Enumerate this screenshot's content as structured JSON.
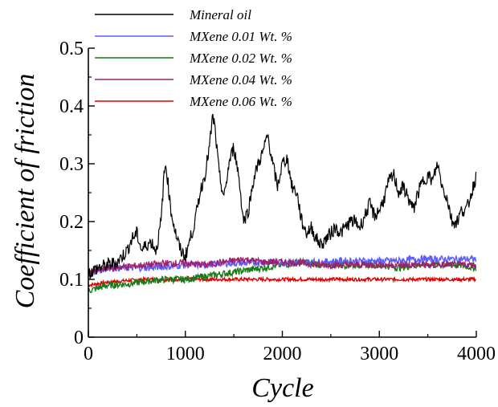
{
  "chart_data": {
    "type": "line",
    "title": "",
    "xlabel": "Cycle",
    "ylabel": "Coefficient of friction",
    "xlim": [
      0,
      4000
    ],
    "ylim": [
      0,
      0.5
    ],
    "xticks": [
      0,
      1000,
      2000,
      3000,
      4000
    ],
    "yticks": [
      0,
      0.1,
      0.2,
      0.3,
      0.4,
      0.5
    ],
    "xtick_labels": [
      "0",
      "1000",
      "2000",
      "3000",
      "4000"
    ],
    "ytick_labels": [
      "0",
      "0.1",
      "0.2",
      "0.3",
      "0.4",
      "0.5"
    ],
    "grid": false,
    "legend_position": "top-left",
    "series": [
      {
        "name": "Mineral oil",
        "color": "#000000",
        "points": [
          [
            0,
            0.11
          ],
          [
            100,
            0.12
          ],
          [
            200,
            0.125
          ],
          [
            300,
            0.13
          ],
          [
            400,
            0.15
          ],
          [
            450,
            0.17
          ],
          [
            500,
            0.18
          ],
          [
            550,
            0.15
          ],
          [
            600,
            0.16
          ],
          [
            650,
            0.165
          ],
          [
            700,
            0.15
          ],
          [
            750,
            0.2
          ],
          [
            780,
            0.28
          ],
          [
            800,
            0.3
          ],
          [
            850,
            0.22
          ],
          [
            900,
            0.18
          ],
          [
            950,
            0.15
          ],
          [
            1000,
            0.14
          ],
          [
            1050,
            0.17
          ],
          [
            1100,
            0.2
          ],
          [
            1150,
            0.25
          ],
          [
            1200,
            0.28
          ],
          [
            1250,
            0.33
          ],
          [
            1280,
            0.38
          ],
          [
            1300,
            0.37
          ],
          [
            1350,
            0.28
          ],
          [
            1400,
            0.24
          ],
          [
            1450,
            0.3
          ],
          [
            1500,
            0.33
          ],
          [
            1550,
            0.28
          ],
          [
            1600,
            0.2
          ],
          [
            1650,
            0.22
          ],
          [
            1700,
            0.27
          ],
          [
            1750,
            0.3
          ],
          [
            1800,
            0.32
          ],
          [
            1850,
            0.35
          ],
          [
            1900,
            0.3
          ],
          [
            1950,
            0.26
          ],
          [
            2000,
            0.3
          ],
          [
            2050,
            0.31
          ],
          [
            2100,
            0.26
          ],
          [
            2150,
            0.25
          ],
          [
            2200,
            0.2
          ],
          [
            2250,
            0.18
          ],
          [
            2300,
            0.19
          ],
          [
            2350,
            0.17
          ],
          [
            2400,
            0.16
          ],
          [
            2450,
            0.17
          ],
          [
            2500,
            0.18
          ],
          [
            2550,
            0.19
          ],
          [
            2600,
            0.18
          ],
          [
            2650,
            0.19
          ],
          [
            2700,
            0.2
          ],
          [
            2750,
            0.2
          ],
          [
            2800,
            0.19
          ],
          [
            2850,
            0.21
          ],
          [
            2900,
            0.23
          ],
          [
            2950,
            0.21
          ],
          [
            3000,
            0.22
          ],
          [
            3050,
            0.24
          ],
          [
            3100,
            0.27
          ],
          [
            3150,
            0.28
          ],
          [
            3200,
            0.25
          ],
          [
            3250,
            0.26
          ],
          [
            3300,
            0.24
          ],
          [
            3350,
            0.22
          ],
          [
            3400,
            0.25
          ],
          [
            3450,
            0.27
          ],
          [
            3500,
            0.28
          ],
          [
            3550,
            0.27
          ],
          [
            3600,
            0.3
          ],
          [
            3650,
            0.26
          ],
          [
            3700,
            0.24
          ],
          [
            3750,
            0.2
          ],
          [
            3800,
            0.2
          ],
          [
            3850,
            0.22
          ],
          [
            3900,
            0.22
          ],
          [
            3950,
            0.25
          ],
          [
            4000,
            0.28
          ]
        ]
      },
      {
        "name": "MXene 0.01 Wt. %",
        "color": "#5b5bff",
        "points": [
          [
            0,
            0.11
          ],
          [
            200,
            0.12
          ],
          [
            400,
            0.12
          ],
          [
            600,
            0.12
          ],
          [
            800,
            0.122
          ],
          [
            1000,
            0.125
          ],
          [
            1200,
            0.125
          ],
          [
            1400,
            0.128
          ],
          [
            1600,
            0.128
          ],
          [
            1800,
            0.13
          ],
          [
            2000,
            0.13
          ],
          [
            2200,
            0.13
          ],
          [
            2400,
            0.13
          ],
          [
            2600,
            0.132
          ],
          [
            2800,
            0.132
          ],
          [
            3000,
            0.132
          ],
          [
            3200,
            0.132
          ],
          [
            3400,
            0.135
          ],
          [
            3600,
            0.135
          ],
          [
            3800,
            0.135
          ],
          [
            4000,
            0.135
          ]
        ]
      },
      {
        "name": "MXene 0.02 Wt. %",
        "color": "#1a7a1a",
        "points": [
          [
            0,
            0.08
          ],
          [
            200,
            0.09
          ],
          [
            400,
            0.092
          ],
          [
            600,
            0.097
          ],
          [
            800,
            0.1
          ],
          [
            1000,
            0.1
          ],
          [
            1200,
            0.105
          ],
          [
            1400,
            0.11
          ],
          [
            1600,
            0.115
          ],
          [
            1800,
            0.12
          ],
          [
            2000,
            0.125
          ],
          [
            2200,
            0.13
          ],
          [
            2400,
            0.125
          ],
          [
            2600,
            0.125
          ],
          [
            2800,
            0.125
          ],
          [
            3000,
            0.125
          ],
          [
            3200,
            0.12
          ],
          [
            3400,
            0.125
          ],
          [
            3600,
            0.125
          ],
          [
            3800,
            0.125
          ],
          [
            4000,
            0.12
          ]
        ]
      },
      {
        "name": "MXene 0.04 Wt. %",
        "color": "#a0206e",
        "points": [
          [
            0,
            0.11
          ],
          [
            200,
            0.12
          ],
          [
            400,
            0.122
          ],
          [
            600,
            0.125
          ],
          [
            800,
            0.128
          ],
          [
            1000,
            0.128
          ],
          [
            1200,
            0.125
          ],
          [
            1400,
            0.13
          ],
          [
            1600,
            0.135
          ],
          [
            1800,
            0.13
          ],
          [
            2000,
            0.13
          ],
          [
            2200,
            0.128
          ],
          [
            2400,
            0.125
          ],
          [
            2600,
            0.125
          ],
          [
            2800,
            0.125
          ],
          [
            3000,
            0.125
          ],
          [
            3200,
            0.125
          ],
          [
            3400,
            0.125
          ],
          [
            3600,
            0.125
          ],
          [
            3800,
            0.125
          ],
          [
            4000,
            0.125
          ]
        ]
      },
      {
        "name": "MXene 0.06 Wt. %",
        "color": "#e00000",
        "points": [
          [
            0,
            0.09
          ],
          [
            200,
            0.095
          ],
          [
            400,
            0.098
          ],
          [
            600,
            0.1
          ],
          [
            800,
            0.1
          ],
          [
            1000,
            0.1
          ],
          [
            1200,
            0.1
          ],
          [
            1400,
            0.1
          ],
          [
            1600,
            0.1
          ],
          [
            1800,
            0.1
          ],
          [
            2000,
            0.1
          ],
          [
            2200,
            0.1
          ],
          [
            2400,
            0.1
          ],
          [
            2600,
            0.1
          ],
          [
            2800,
            0.1
          ],
          [
            3000,
            0.1
          ],
          [
            3200,
            0.1
          ],
          [
            3400,
            0.1
          ],
          [
            3600,
            0.1
          ],
          [
            3800,
            0.1
          ],
          [
            4000,
            0.1
          ]
        ]
      }
    ]
  }
}
